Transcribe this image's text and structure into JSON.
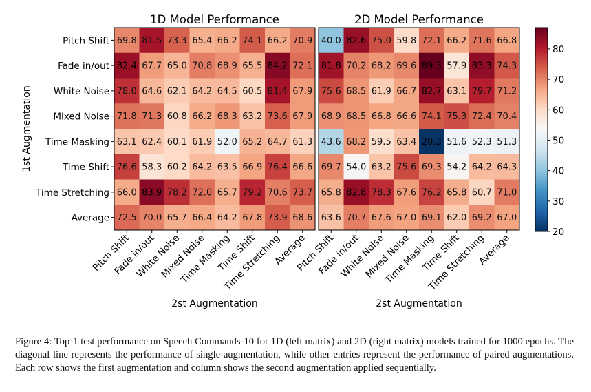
{
  "chart_data": [
    {
      "type": "heatmap",
      "title": "1D Model Performance",
      "ylabel": "1st Augmentation",
      "xlabel": "2st Augmentation",
      "row_labels": [
        "Pitch Shift",
        "Fade in/out",
        "White Noise",
        "Mixed Noise",
        "Time Masking",
        "Time Shift",
        "Time Stretching",
        "Average"
      ],
      "col_labels": [
        "Pitch Shift",
        "Fade in/out",
        "White Noise",
        "Mixed Noise",
        "Time Masking",
        "Time Shift",
        "Time Stretching",
        "Average"
      ],
      "values": [
        [
          69.8,
          81.5,
          73.3,
          65.4,
          66.2,
          74.1,
          66.2,
          70.9
        ],
        [
          82.4,
          67.7,
          65.0,
          70.8,
          68.9,
          65.5,
          84.2,
          72.1
        ],
        [
          78.0,
          64.6,
          62.1,
          64.2,
          64.5,
          60.5,
          81.4,
          67.9
        ],
        [
          71.8,
          71.3,
          60.8,
          66.2,
          68.3,
          63.2,
          73.6,
          67.9
        ],
        [
          63.1,
          62.4,
          60.1,
          61.9,
          52.0,
          65.2,
          64.7,
          61.3
        ],
        [
          76.6,
          58.3,
          60.2,
          64.2,
          63.5,
          66.9,
          76.4,
          66.6
        ],
        [
          66.0,
          83.9,
          78.2,
          72.0,
          65.7,
          79.2,
          70.6,
          73.7
        ],
        [
          72.5,
          70.0,
          65.7,
          66.4,
          64.2,
          67.8,
          73.9,
          68.6
        ]
      ]
    },
    {
      "type": "heatmap",
      "title": "2D Model Performance",
      "ylabel": "",
      "xlabel": "2st Augmentation",
      "row_labels": [],
      "col_labels": [
        "Pitch Shift",
        "Fade in/out",
        "White Noise",
        "Mixed Noise",
        "Time Masking",
        "Time Shift",
        "Time Stretching",
        "Average"
      ],
      "values": [
        [
          40.0,
          82.6,
          75.0,
          59.8,
          72.1,
          66.2,
          71.6,
          66.8
        ],
        [
          81.8,
          70.2,
          68.2,
          69.6,
          89.3,
          57.9,
          83.3,
          74.3
        ],
        [
          75.6,
          68.5,
          61.9,
          66.7,
          82.7,
          63.1,
          79.7,
          71.2
        ],
        [
          68.9,
          68.5,
          66.8,
          66.6,
          74.1,
          75.3,
          72.4,
          70.4
        ],
        [
          43.6,
          68.2,
          59.5,
          63.4,
          20.3,
          51.6,
          52.3,
          51.3
        ],
        [
          69.7,
          54.0,
          63.2,
          75.6,
          69.3,
          54.2,
          64.2,
          64.3
        ],
        [
          65.8,
          82.8,
          78.3,
          67.6,
          76.2,
          65.8,
          60.7,
          71.0
        ],
        [
          63.6,
          70.7,
          67.6,
          67.0,
          69.1,
          62.0,
          69.2,
          67.0
        ]
      ]
    }
  ],
  "colorbar": {
    "ticks": [
      20,
      30,
      40,
      50,
      60,
      70,
      80
    ],
    "vmin": 20,
    "vmax": 87,
    "colormap": "RdBu_r"
  },
  "caption": "Figure 4: Top-1 test performance on Speech Commands-10 for 1D (left matrix) and 2D (right matrix) models trained for 1000 epochs. The diagonal line represents the performance of single augmentation, while other entries represent the performance of paired augmentations. Each row shows the first augmentation and column shows the second augmentation applied sequentially."
}
